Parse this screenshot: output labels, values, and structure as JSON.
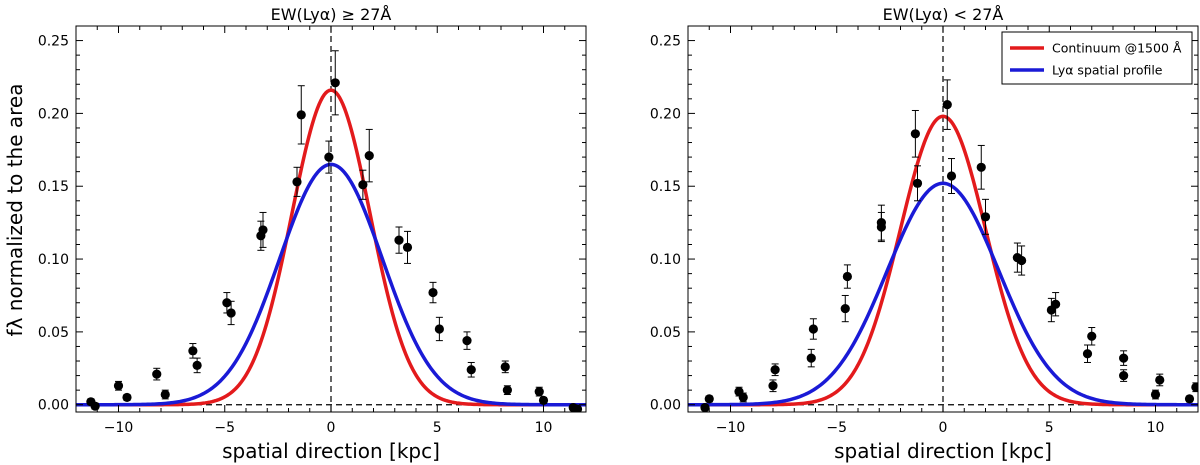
{
  "shared_ylabel": "fλ normalized to the area",
  "chart_data": [
    {
      "type": "line",
      "title": "EW(Lyα) ≥ 27Å",
      "xlabel": "spatial direction [kpc]",
      "ylabel": "fλ normalized to the area",
      "xlim": [
        -12,
        12
      ],
      "ylim": [
        -0.005,
        0.26
      ],
      "xticks": [
        -10,
        -5,
        0,
        5,
        10
      ],
      "yticks": [
        0.0,
        0.05,
        0.1,
        0.15,
        0.2,
        0.25
      ],
      "xtick_labels": [
        "−10",
        "−5",
        "0",
        "5",
        "10"
      ],
      "ytick_labels": [
        "0.00",
        "0.05",
        "0.10",
        "0.15",
        "0.20",
        "0.25"
      ],
      "reference_lines": {
        "vertical_x": 0,
        "horizontal_y": 0
      },
      "legend": null,
      "series": [
        {
          "name": "Continuum @1500 Å",
          "kind": "gaussian",
          "color": "#e31a1c",
          "amplitude": 0.216,
          "center": 0,
          "sigma": 1.84,
          "points": [
            {
              "x": -11.3,
              "y": 0.002,
              "err": 0.002
            },
            {
              "x": -9.6,
              "y": 0.005,
              "err": 0.002
            },
            {
              "x": -7.8,
              "y": 0.007,
              "err": 0.003
            },
            {
              "x": -6.3,
              "y": 0.027,
              "err": 0.005
            },
            {
              "x": -4.7,
              "y": 0.063,
              "err": 0.008
            },
            {
              "x": -3.2,
              "y": 0.12,
              "err": 0.012
            },
            {
              "x": -1.4,
              "y": 0.199,
              "err": 0.02
            },
            {
              "x": 0.2,
              "y": 0.221,
              "err": 0.022
            },
            {
              "x": 1.8,
              "y": 0.171,
              "err": 0.018
            },
            {
              "x": 3.6,
              "y": 0.108,
              "err": 0.011
            },
            {
              "x": 5.1,
              "y": 0.052,
              "err": 0.008
            },
            {
              "x": 6.6,
              "y": 0.024,
              "err": 0.005
            },
            {
              "x": 8.3,
              "y": 0.01,
              "err": 0.003
            },
            {
              "x": 10.0,
              "y": 0.003,
              "err": 0.002
            },
            {
              "x": 11.6,
              "y": -0.003,
              "err": 0.002
            }
          ]
        },
        {
          "name": "Lyα spatial profile",
          "kind": "gaussian",
          "color": "#1a1ad6",
          "amplitude": 0.165,
          "center": 0,
          "sigma": 2.42,
          "points": [
            {
              "x": -11.1,
              "y": -0.001,
              "err": 0.002
            },
            {
              "x": -10.0,
              "y": 0.013,
              "err": 0.003
            },
            {
              "x": -8.2,
              "y": 0.021,
              "err": 0.004
            },
            {
              "x": -6.5,
              "y": 0.037,
              "err": 0.005
            },
            {
              "x": -4.9,
              "y": 0.07,
              "err": 0.007
            },
            {
              "x": -3.3,
              "y": 0.116,
              "err": 0.01
            },
            {
              "x": -1.6,
              "y": 0.153,
              "err": 0.01
            },
            {
              "x": -0.1,
              "y": 0.17,
              "err": 0.011
            },
            {
              "x": 1.5,
              "y": 0.151,
              "err": 0.01
            },
            {
              "x": 3.2,
              "y": 0.113,
              "err": 0.009
            },
            {
              "x": 4.8,
              "y": 0.077,
              "err": 0.007
            },
            {
              "x": 6.4,
              "y": 0.044,
              "err": 0.006
            },
            {
              "x": 8.2,
              "y": 0.026,
              "err": 0.004
            },
            {
              "x": 9.8,
              "y": 0.009,
              "err": 0.003
            },
            {
              "x": 11.4,
              "y": -0.002,
              "err": 0.002
            }
          ]
        }
      ]
    },
    {
      "type": "line",
      "title": "EW(Lyα) < 27Å",
      "xlabel": "spatial direction [kpc]",
      "ylabel": "fλ normalized to the area",
      "xlim": [
        -12,
        12
      ],
      "ylim": [
        -0.005,
        0.26
      ],
      "xticks": [
        -10,
        -5,
        0,
        5,
        10
      ],
      "yticks": [
        0.0,
        0.05,
        0.1,
        0.15,
        0.2,
        0.25
      ],
      "xtick_labels": [
        "−10",
        "−5",
        "0",
        "5",
        "10"
      ],
      "ytick_labels": [
        "0.00",
        "0.05",
        "0.10",
        "0.15",
        "0.20",
        "0.25"
      ],
      "reference_lines": {
        "vertical_x": 0,
        "horizontal_y": 0
      },
      "legend": {
        "placement": "top-right",
        "entries": [
          {
            "label": "Continuum @1500 Å",
            "color": "#e31a1c"
          },
          {
            "label": "Lyα spatial profile",
            "color": "#1a1ad6"
          }
        ]
      },
      "series": [
        {
          "name": "Continuum @1500 Å",
          "kind": "gaussian",
          "color": "#e31a1c",
          "amplitude": 0.198,
          "center": 0,
          "sigma": 2.01,
          "points": [
            {
              "x": -11.2,
              "y": -0.002,
              "err": 0.002
            },
            {
              "x": -9.6,
              "y": 0.009,
              "err": 0.003
            },
            {
              "x": -8.0,
              "y": 0.013,
              "err": 0.004
            },
            {
              "x": -6.2,
              "y": 0.032,
              "err": 0.006
            },
            {
              "x": -4.6,
              "y": 0.066,
              "err": 0.009
            },
            {
              "x": -2.9,
              "y": 0.125,
              "err": 0.012
            },
            {
              "x": -1.3,
              "y": 0.186,
              "err": 0.016
            },
            {
              "x": 0.2,
              "y": 0.206,
              "err": 0.017
            },
            {
              "x": 1.8,
              "y": 0.163,
              "err": 0.015
            },
            {
              "x": 3.5,
              "y": 0.101,
              "err": 0.01
            },
            {
              "x": 5.1,
              "y": 0.065,
              "err": 0.008
            },
            {
              "x": 6.8,
              "y": 0.035,
              "err": 0.006
            },
            {
              "x": 8.5,
              "y": 0.032,
              "err": 0.005
            },
            {
              "x": 10.2,
              "y": 0.017,
              "err": 0.004
            },
            {
              "x": 11.9,
              "y": 0.012,
              "err": 0.003
            }
          ]
        },
        {
          "name": "Lyα spatial profile",
          "kind": "gaussian",
          "color": "#1a1ad6",
          "amplitude": 0.152,
          "center": 0,
          "sigma": 2.62,
          "points": [
            {
              "x": -11.0,
              "y": 0.004,
              "err": 0.002
            },
            {
              "x": -9.4,
              "y": 0.005,
              "err": 0.003
            },
            {
              "x": -7.9,
              "y": 0.024,
              "err": 0.004
            },
            {
              "x": -6.1,
              "y": 0.052,
              "err": 0.007
            },
            {
              "x": -4.5,
              "y": 0.088,
              "err": 0.008
            },
            {
              "x": -2.9,
              "y": 0.122,
              "err": 0.01
            },
            {
              "x": -1.2,
              "y": 0.152,
              "err": 0.012
            },
            {
              "x": 0.4,
              "y": 0.157,
              "err": 0.012
            },
            {
              "x": 2.0,
              "y": 0.129,
              "err": 0.012
            },
            {
              "x": 3.7,
              "y": 0.099,
              "err": 0.01
            },
            {
              "x": 5.3,
              "y": 0.069,
              "err": 0.008
            },
            {
              "x": 7.0,
              "y": 0.047,
              "err": 0.006
            },
            {
              "x": 8.5,
              "y": 0.02,
              "err": 0.004
            },
            {
              "x": 10.0,
              "y": 0.007,
              "err": 0.003
            },
            {
              "x": 11.6,
              "y": 0.004,
              "err": 0.002
            }
          ]
        }
      ]
    }
  ]
}
